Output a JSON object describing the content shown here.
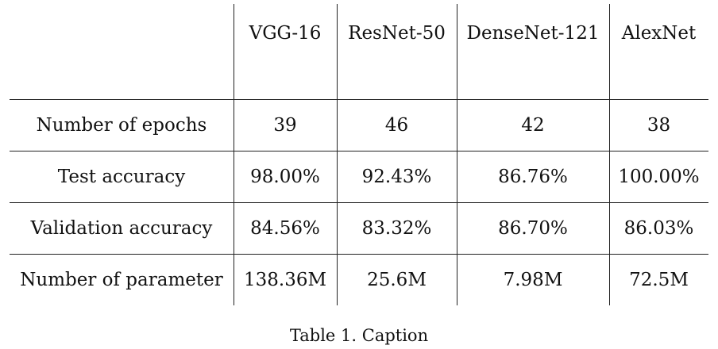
{
  "table": {
    "columns": [
      "",
      "VGG-16",
      "ResNet-50",
      "DenseNet-121",
      "AlexNet"
    ],
    "rows": [
      {
        "label": "Number of epochs",
        "values": [
          "39",
          "46",
          "42",
          "38"
        ]
      },
      {
        "label": "Test accuracy",
        "values": [
          "98.00%",
          "92.43%",
          "86.76%",
          "100.00%"
        ]
      },
      {
        "label": "Validation accuracy",
        "values": [
          "84.56%",
          "83.32%",
          "86.70%",
          "86.03%"
        ]
      },
      {
        "label": "Number of parameter",
        "values": [
          "138.36M",
          "25.6M",
          "7.98M",
          "72.5M"
        ]
      }
    ]
  },
  "caption": "Table 1. Caption"
}
